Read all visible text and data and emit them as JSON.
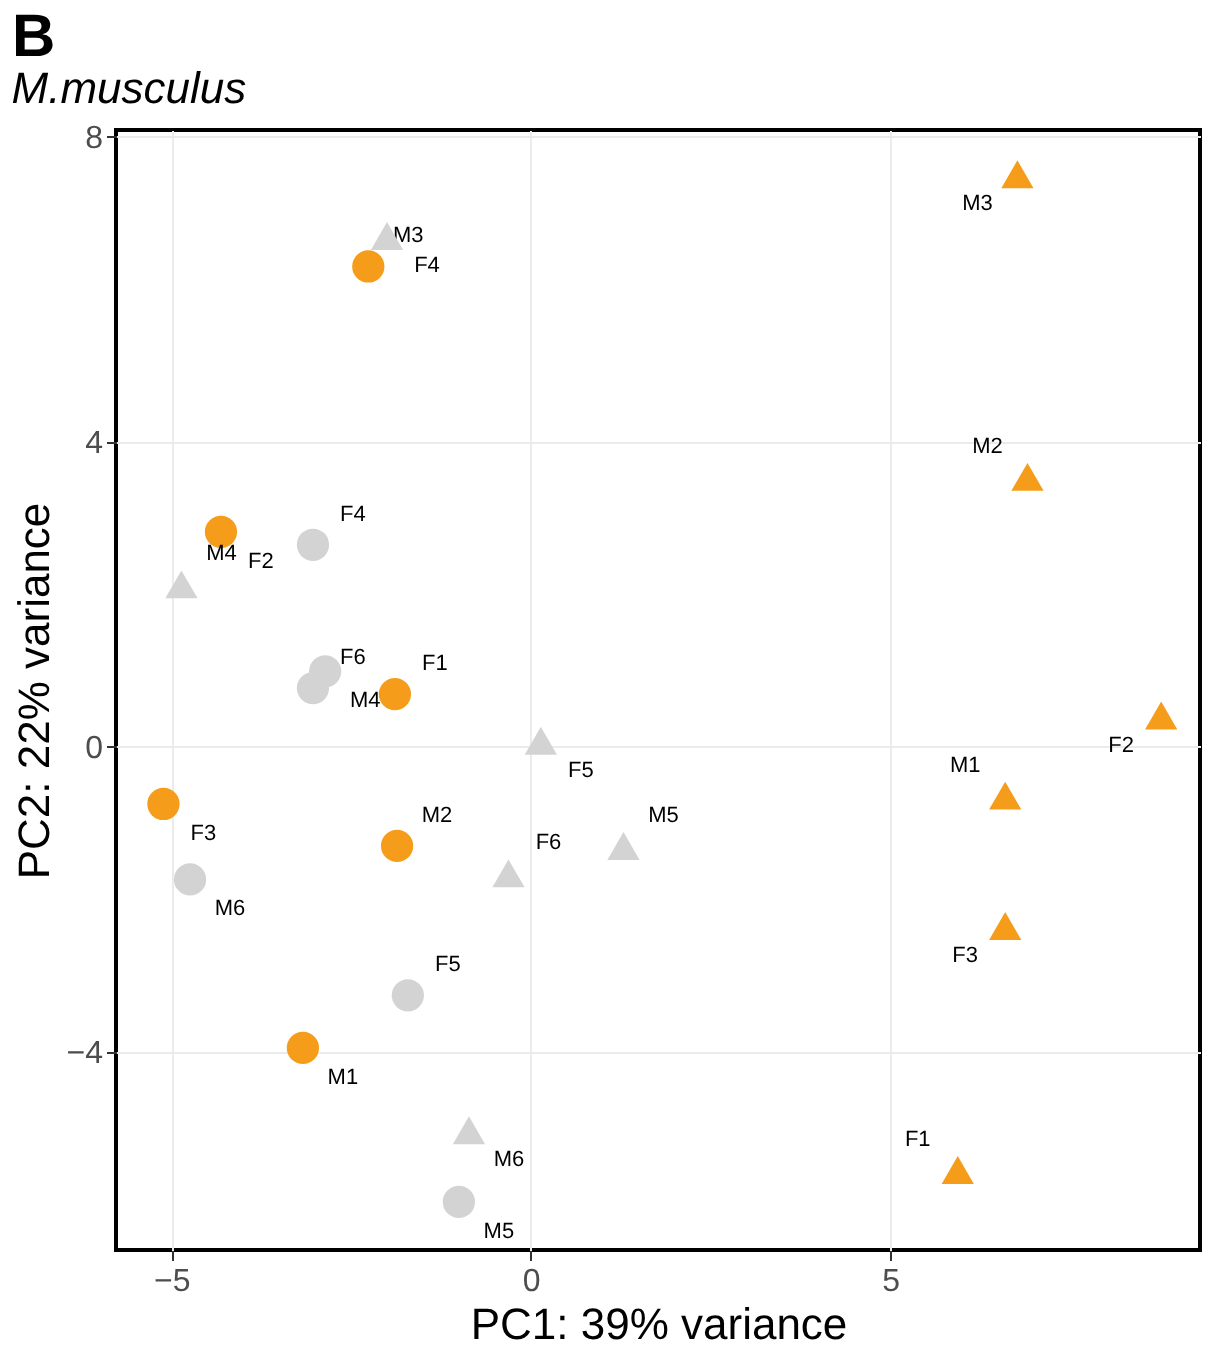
{
  "chart_data": {
    "type": "scatter",
    "title": "M.musculus",
    "xlabel": "PC1: 39% variance",
    "ylabel": "PC2: 22% variance",
    "annotations": [
      "B"
    ],
    "xlim": [
      -5.77,
      9.31
    ],
    "ylim": [
      -6.6,
      8.09
    ],
    "xticks": [
      -5,
      0,
      5
    ],
    "yticks": [
      -4,
      0,
      4,
      8
    ],
    "grid": true,
    "series": [
      {
        "color": "#f59d1a",
        "marker": "circle",
        "x": [
          -2.26,
          -4.31,
          -1.89,
          -5.11,
          -1.86,
          -3.17
        ],
        "values": [
          6.3,
          2.82,
          0.69,
          -0.75,
          -1.3,
          -3.95
        ],
        "value_labels": [
          "M3",
          "F2",
          "F1",
          "F3",
          "M2",
          "M1"
        ]
      },
      {
        "color": "#f59d1a",
        "marker": "triangle",
        "x": [
          6.77,
          6.91,
          8.77,
          6.6,
          6.6,
          5.94
        ],
        "values": [
          7.51,
          3.54,
          0.41,
          -0.64,
          -2.35,
          -5.55
        ],
        "value_labels": [
          "M3",
          "M2",
          "F2",
          "M1",
          "F3",
          "F1"
        ]
      },
      {
        "color": "#d3d3d3",
        "marker": "circle",
        "x": [
          -3.03,
          -2.86,
          -3.03,
          -4.74,
          -1.71,
          -1.0
        ],
        "values": [
          2.65,
          0.99,
          0.77,
          -1.74,
          -3.26,
          -5.97
        ],
        "value_labels": [
          "F4",
          "M4",
          "F6",
          "M6",
          "F5",
          "M5"
        ]
      },
      {
        "color": "#d3d3d3",
        "marker": "triangle",
        "x": [
          -2.0,
          -4.86,
          0.14,
          -0.31,
          -0.86,
          1.29
        ],
        "values": [
          6.7,
          2.13,
          0.08,
          -1.66,
          -5.03,
          -1.3
        ],
        "value_labels": [
          "F4",
          "M4",
          "F5",
          "F6",
          "M6",
          "M5"
        ]
      }
    ]
  }
}
